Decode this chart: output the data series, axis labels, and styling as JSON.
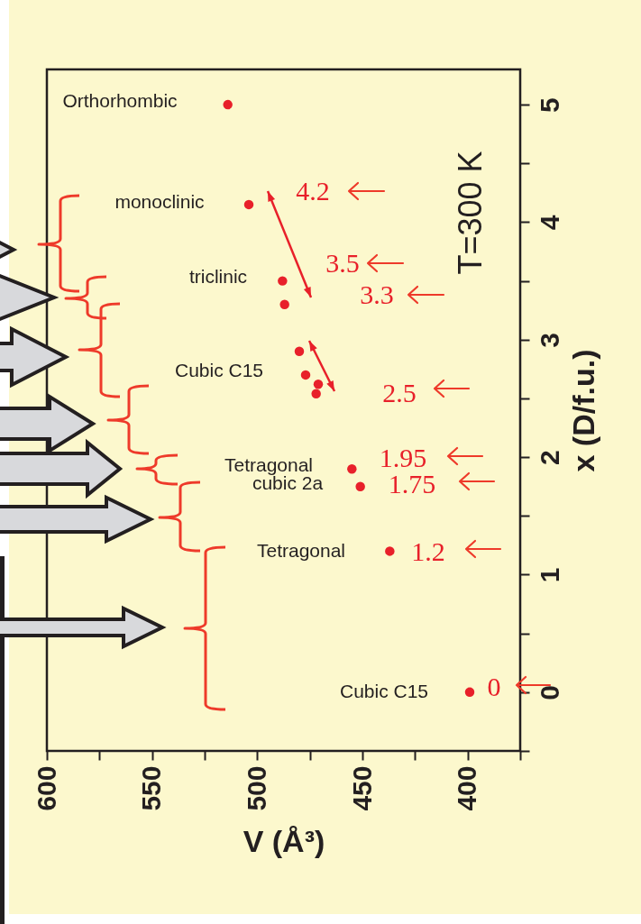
{
  "chart_data": {
    "type": "scatter",
    "title": "T=300 K",
    "xlabel": "V (Å³)",
    "ylabel": "x (D/f.u.)",
    "x": [
      399,
      437,
      451,
      455,
      472,
      471,
      477,
      480,
      487,
      488,
      504,
      514
    ],
    "values": [
      0,
      1.2,
      1.75,
      1.9,
      2.54,
      2.62,
      2.7,
      2.9,
      3.3,
      3.5,
      4.15,
      5.0
    ],
    "color": "#e8202a",
    "marker": "circle",
    "xlim": [
      600,
      375
    ],
    "xticks": [
      600,
      {
        "value": 575,
        "label": null
      },
      550,
      {
        "value": 525,
        "label": null
      },
      500,
      {
        "value": 475,
        "label": null
      },
      450,
      {
        "value": 425,
        "label": null
      },
      400,
      {
        "value": 375,
        "label": null
      }
    ],
    "ylim": [
      -0.5,
      5.3
    ],
    "yticks": [
      {
        "value": -0.5,
        "label": null
      },
      0,
      {
        "value": 0.5,
        "label": null
      },
      1,
      {
        "value": 1.5,
        "label": null
      },
      2,
      {
        "value": 2.5,
        "label": null
      },
      3,
      {
        "value": 3.5,
        "label": null
      },
      4,
      {
        "value": 4.5,
        "label": null
      },
      5
    ],
    "annotations": [
      "Cubic C15",
      "Tetragonal",
      "cubic 2a",
      "Tetragonal",
      "Cubic C15",
      "triclinic",
      "monoclinic",
      "Orthorhombic",
      "0",
      "1.2",
      "1.75",
      "1.95",
      "2.5",
      "3.3",
      "3.5",
      "4.2"
    ]
  }
}
